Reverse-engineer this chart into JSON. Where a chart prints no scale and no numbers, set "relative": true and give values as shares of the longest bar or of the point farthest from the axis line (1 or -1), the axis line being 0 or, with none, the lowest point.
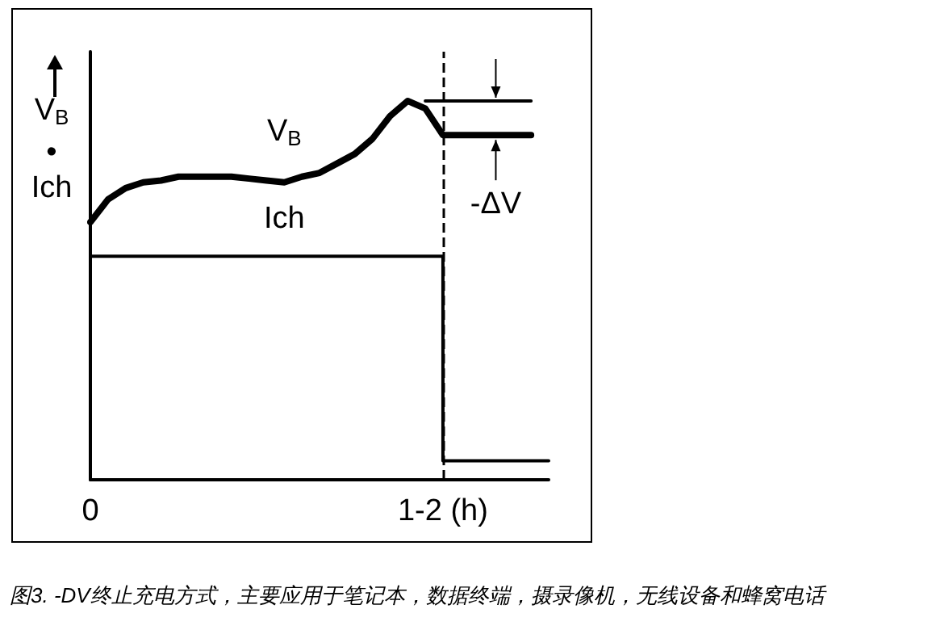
{
  "chart_data": {
    "type": "line",
    "relative": true,
    "ylabel": "V$_{B}$\n•\nIch",
    "categories": [
      "0",
      null,
      null,
      null,
      null,
      null,
      null,
      null,
      null,
      null,
      null,
      null,
      null,
      null,
      null,
      null,
      null,
      null,
      null,
      null,
      "1-2 (h)",
      null,
      null,
      null,
      null,
      null,
      null
    ],
    "series": [
      {
        "name": "V$_{B}$",
        "color": "#000000",
        "values": [
          0.68,
          0.74,
          0.77,
          0.785,
          0.79,
          0.8,
          0.8,
          0.8,
          0.8,
          0.795,
          0.79,
          0.785,
          0.8,
          0.81,
          0.835,
          0.86,
          0.9,
          0.96,
          1,
          0.98,
          0.91,
          0.91,
          0.91,
          0.91,
          0.91,
          0.91,
          null
        ]
      },
      {
        "name": "Ich",
        "type": "step",
        "color": "#000000",
        "values": [
          0.59,
          0.59,
          0.59,
          0.59,
          0.59,
          0.59,
          0.59,
          0.59,
          0.59,
          0.59,
          0.59,
          0.59,
          0.59,
          0.59,
          0.59,
          0.59,
          0.59,
          0.59,
          0.59,
          0.59,
          0.59,
          0.05,
          0.05,
          0.05,
          0.05,
          0.05,
          0.05
        ]
      },
      {
        "color": "#000000",
        "values": [
          null,
          null,
          null,
          null,
          null,
          null,
          null,
          null,
          null,
          null,
          null,
          null,
          null,
          null,
          null,
          null,
          null,
          null,
          null,
          1,
          1,
          1,
          1,
          1,
          1,
          1,
          null
        ]
      }
    ],
    "ref_lines": [
      {
        "axis": "x",
        "value": "1-2 (h)",
        "line_style": "dashed",
        "color": "#000000"
      }
    ],
    "annotations": [
      "-ΔV",
      "图3. -DV终止充电方式，主要应用于笔记本，数据终端，摄录像机，无线设备和蜂窝电话"
    ],
    "grid": false,
    "marker": "none",
    "line_style": "solid"
  }
}
